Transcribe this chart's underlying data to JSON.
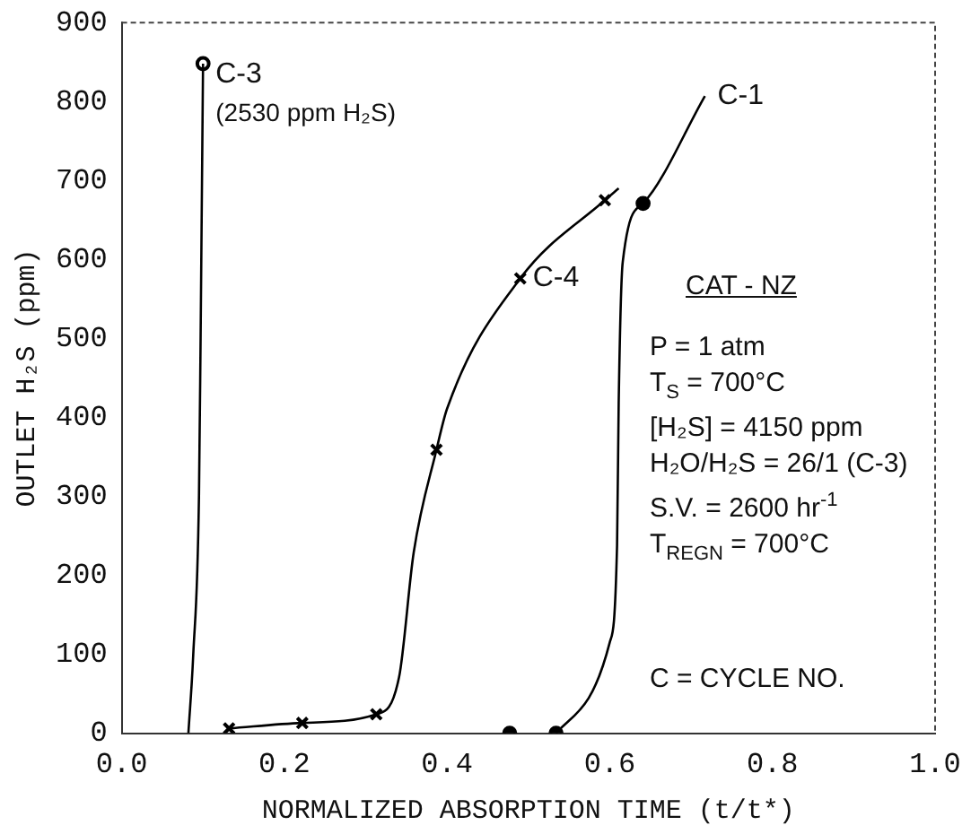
{
  "chart_data": {
    "type": "line",
    "xlabel": "NORMALIZED ABSORPTION TIME (t/t*)",
    "ylabel": "OUTLET H₂S (ppm)",
    "xlim": [
      0,
      1
    ],
    "ylim": [
      0,
      900
    ],
    "xticks": [
      {
        "value": 0,
        "label": "0.0"
      },
      {
        "value": 0.2,
        "label": "0.2"
      },
      {
        "value": 0.4,
        "label": "0.4"
      },
      {
        "value": 0.6,
        "label": "0.6"
      },
      {
        "value": 0.8,
        "label": "0.8"
      },
      {
        "value": 1,
        "label": "1.0"
      }
    ],
    "yticks": [
      0,
      100,
      200,
      300,
      400,
      500,
      600,
      700,
      800,
      900
    ],
    "grid": false,
    "legend": false,
    "series": [
      {
        "type": "line",
        "marker": "none",
        "color": "#000000",
        "x": [
          0.082,
          0.088,
          0.095,
          0.097,
          0.1
        ],
        "values": [
          0,
          100,
          300,
          500,
          848
        ]
      },
      {
        "type": "scatter",
        "name": "C-3",
        "marker": "circle",
        "color": "#000000",
        "x": [
          0.1
        ],
        "values": [
          848
        ]
      },
      {
        "type": "line",
        "marker": "none",
        "color": "#000000",
        "x": [
          0.132,
          0.222,
          0.313,
          0.341,
          0.359,
          0.387,
          0.4,
          0.49,
          0.594,
          0.611
        ],
        "values": [
          6,
          13,
          24,
          71,
          229,
          359,
          411,
          576,
          675,
          690
        ]
      },
      {
        "type": "scatter",
        "name": "C-4",
        "marker": "cross",
        "color": "#000000",
        "x": [
          0.132,
          0.222,
          0.313,
          0.387,
          0.49,
          0.594
        ],
        "values": [
          6,
          13,
          24,
          359,
          576,
          675
        ]
      },
      {
        "type": "line",
        "name": "C-1",
        "marker": "none",
        "color": "#000000",
        "x": [
          0.534,
          0.6,
          0.609,
          0.611,
          0.616,
          0.641,
          0.717
        ],
        "values": [
          0,
          115,
          238,
          418,
          597,
          671,
          807
        ]
      },
      {
        "type": "scatter",
        "marker": "circle",
        "color": "#000000",
        "x": [
          0.477,
          0.534,
          0.641
        ],
        "values": [
          0,
          0,
          671
        ]
      }
    ],
    "annotations": [
      {
        "text": "(2530 ppm H₂S)",
        "x": 0.1,
        "y": 848
      },
      "CAT - NZ",
      "P = 1 atm",
      "T$_{S}$ = 700°C",
      "[H₂S] = 4150 ppm",
      "H₂O/H₂S = 26/1 (C-3)",
      "S.V. = 2600 hr$^{-1}$",
      "T$_{REGN}$ = 700°C",
      "C = CYCLE NO."
    ]
  }
}
